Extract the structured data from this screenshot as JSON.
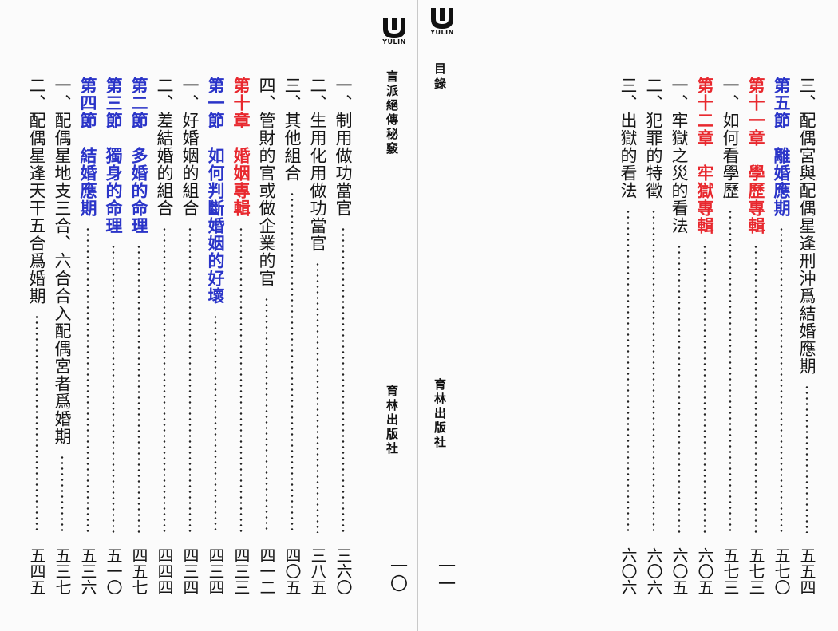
{
  "left_page": {
    "logo_text": "YULIN",
    "book_title": "盲派絕傳秘竅",
    "publisher": "育林出版社",
    "page_number": "一〇",
    "toc_entries": [
      {
        "type": "entry",
        "title": "一、制用做功當官",
        "page": "三六〇"
      },
      {
        "type": "entry",
        "title": "二、生用化用做功當官",
        "page": "三八五"
      },
      {
        "type": "entry",
        "title": "三、其他組合",
        "page": "四〇五"
      },
      {
        "type": "entry",
        "title": "四、管財的官或做企業的官",
        "page": "四一二"
      },
      {
        "type": "chapter",
        "title": "第十章　婚姻專輯",
        "page": "四三三"
      },
      {
        "type": "section",
        "title": "第一節　如何判斷婚姻的好壞",
        "page": "四三四"
      },
      {
        "type": "entry",
        "title": "一、好婚姻的組合",
        "page": "四三四"
      },
      {
        "type": "entry",
        "title": "二、差結婚的組合",
        "page": "四四四"
      },
      {
        "type": "section",
        "title": "第二節　多婚的命理",
        "page": "四五七"
      },
      {
        "type": "section",
        "title": "第三節　獨身的命理",
        "page": "五一〇"
      },
      {
        "type": "section",
        "title": "第四節　結婚應期",
        "page": "五三六"
      },
      {
        "type": "entry",
        "title": "一、配偶星地支三合、六合合入配偶宮者爲婚期",
        "page": "五三七"
      },
      {
        "type": "entry",
        "title": "二、配偶星逢天干五合爲婚期",
        "page": "五四五"
      }
    ]
  },
  "right_page": {
    "logo_text": "YULIN",
    "header_label": "目錄",
    "publisher": "育林出版社",
    "page_number": "一一",
    "toc_entries": [
      {
        "type": "entry",
        "title": "三、配偶宮與配偶星逢刑沖爲結婚應期",
        "page": "五五四"
      },
      {
        "type": "section",
        "title": "第五節　離婚應期",
        "page": "五七〇"
      },
      {
        "type": "chapter",
        "title": "第十一章　學歷專輯",
        "page": "五七三"
      },
      {
        "type": "entry",
        "title": "一、如何看學歷",
        "page": "五七三"
      },
      {
        "type": "chapter",
        "title": "第十二章　牢獄專輯",
        "page": "六〇五"
      },
      {
        "type": "entry",
        "title": "一、牢獄之災的看法",
        "page": "六〇五"
      },
      {
        "type": "entry",
        "title": "二、犯罪的特徵",
        "page": "六〇六"
      },
      {
        "type": "entry",
        "title": "三、出獄的看法",
        "page": "六〇六"
      }
    ]
  },
  "colors": {
    "chapter": "#e8282e",
    "section": "#2a34c8",
    "text": "#161616"
  }
}
